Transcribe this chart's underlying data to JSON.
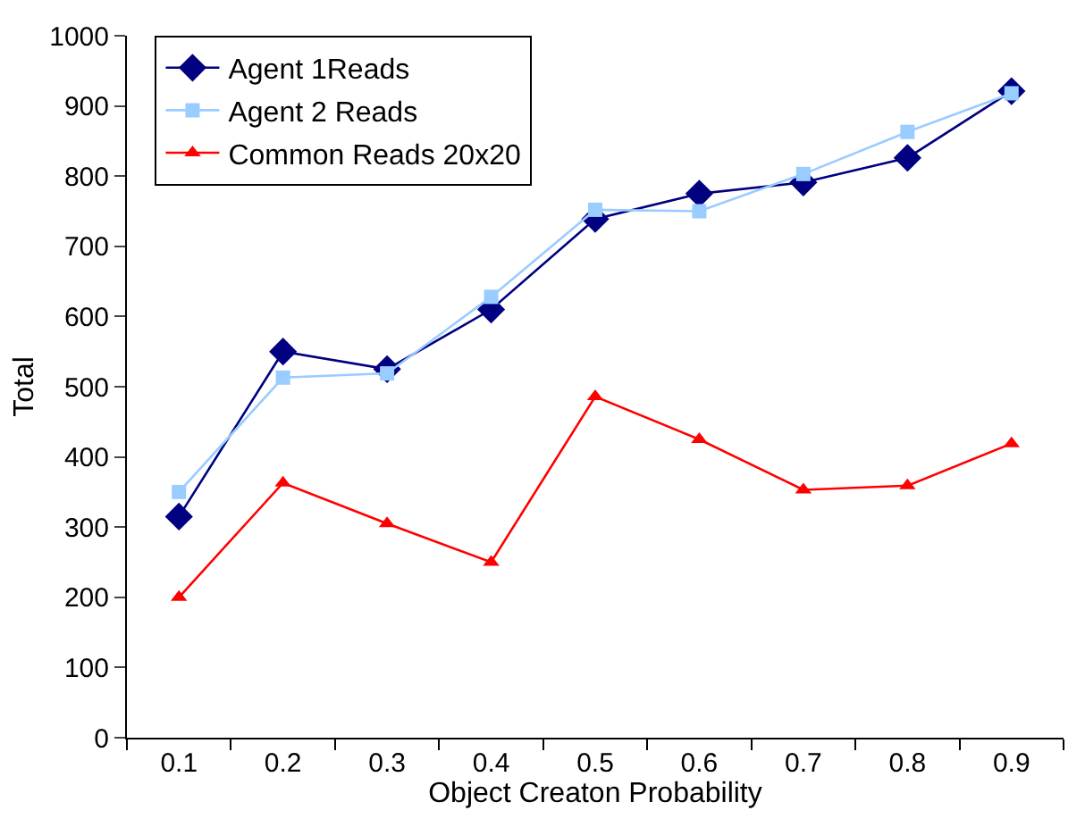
{
  "chart_data": {
    "type": "line",
    "xlabel": "Object Creaton Probability",
    "ylabel": "Total",
    "categories": [
      "0.1",
      "0.2",
      "0.3",
      "0.4",
      "0.5",
      "0.6",
      "0.7",
      "0.8",
      "0.9"
    ],
    "series": [
      {
        "name": "Agent 1Reads",
        "color": "#000080",
        "marker": "diamond",
        "values": [
          315,
          550,
          525,
          610,
          739,
          775,
          791,
          826,
          921
        ]
      },
      {
        "name": "Agent 2 Reads",
        "color": "#99ccff",
        "marker": "square",
        "values": [
          350,
          513,
          519,
          628,
          752,
          750,
          803,
          863,
          918
        ]
      },
      {
        "name": "Common Reads 20x20",
        "color": "#ff0000",
        "marker": "triangle",
        "values": [
          200,
          363,
          305,
          250,
          486,
          425,
          353,
          359,
          419
        ]
      }
    ],
    "ylim": [
      0,
      1000
    ],
    "yticks": [
      0,
      100,
      200,
      300,
      400,
      500,
      600,
      700,
      800,
      900,
      1000
    ],
    "legend": "top left",
    "line_style": "solid"
  }
}
